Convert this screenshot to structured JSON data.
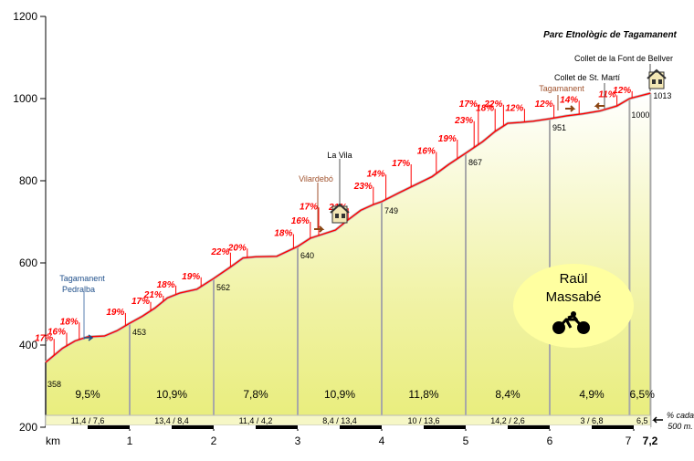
{
  "chart_data": {
    "type": "area",
    "title": "Parc Etnològic de Tagamanent",
    "xlabel": "km",
    "xlim": [
      0,
      7.2
    ],
    "ylim": [
      200,
      1200
    ],
    "y_ticks": [
      200,
      400,
      600,
      800,
      1000,
      1200
    ],
    "x_ticks": [
      1,
      2,
      3,
      4,
      5,
      6,
      7
    ],
    "x_end_label": "7,2",
    "fill_color": "#f1f3a8",
    "line_color": "#ff0000",
    "profile": [
      [
        0,
        358
      ],
      [
        0.1,
        375
      ],
      [
        0.2,
        392
      ],
      [
        0.35,
        410
      ],
      [
        0.5,
        420
      ],
      [
        0.7,
        422
      ],
      [
        0.85,
        435
      ],
      [
        1,
        453
      ],
      [
        1.15,
        470
      ],
      [
        1.3,
        490
      ],
      [
        1.45,
        515
      ],
      [
        1.6,
        527
      ],
      [
        1.8,
        536
      ],
      [
        2,
        562
      ],
      [
        2.2,
        590
      ],
      [
        2.35,
        612
      ],
      [
        2.5,
        615
      ],
      [
        2.75,
        616
      ],
      [
        3,
        640
      ],
      [
        3.15,
        660
      ],
      [
        3.3,
        670
      ],
      [
        3.45,
        680
      ],
      [
        3.6,
        705
      ],
      [
        3.75,
        728
      ],
      [
        3.9,
        742
      ],
      [
        4,
        749
      ],
      [
        4.2,
        770
      ],
      [
        4.4,
        790
      ],
      [
        4.6,
        810
      ],
      [
        4.8,
        840
      ],
      [
        5,
        867
      ],
      [
        5.2,
        895
      ],
      [
        5.35,
        920
      ],
      [
        5.5,
        940
      ],
      [
        5.65,
        942
      ],
      [
        5.8,
        945
      ],
      [
        6,
        951
      ],
      [
        6.2,
        958
      ],
      [
        6.4,
        963
      ],
      [
        6.6,
        970
      ],
      [
        6.8,
        982
      ],
      [
        6.95,
        1000
      ],
      [
        7.2,
        1013
      ]
    ],
    "point_altitudes": [
      {
        "km": 0,
        "alt": "358"
      },
      {
        "km": 1,
        "alt": "453"
      },
      {
        "km": 2,
        "alt": "562"
      },
      {
        "km": 3,
        "alt": "640"
      },
      {
        "km": 4,
        "alt": "749"
      },
      {
        "km": 5,
        "alt": "867"
      },
      {
        "km": 6,
        "alt": "951"
      },
      {
        "km": 6.95,
        "alt": "1000"
      },
      {
        "km": 7.2,
        "alt": "1013"
      }
    ],
    "gradients": [
      {
        "km": 0.1,
        "top": 415,
        "text": "17%"
      },
      {
        "km": 0.25,
        "top": 430,
        "text": "16%"
      },
      {
        "km": 0.4,
        "top": 455,
        "text": "18%"
      },
      {
        "km": 0.95,
        "top": 478,
        "text": "19%"
      },
      {
        "km": 1.25,
        "top": 505,
        "text": "17%"
      },
      {
        "km": 1.4,
        "top": 520,
        "text": "21%"
      },
      {
        "km": 1.55,
        "top": 545,
        "text": "18%"
      },
      {
        "km": 1.85,
        "top": 565,
        "text": "19%"
      },
      {
        "km": 2.2,
        "top": 625,
        "text": "22%"
      },
      {
        "km": 2.4,
        "top": 635,
        "text": "20%"
      },
      {
        "km": 2.95,
        "top": 670,
        "text": "18%"
      },
      {
        "km": 3.15,
        "top": 700,
        "text": "16%"
      },
      {
        "km": 3.25,
        "top": 735,
        "text": "17%"
      },
      {
        "km": 3.6,
        "top": 733,
        "text": "21%"
      },
      {
        "km": 3.9,
        "top": 785,
        "text": "23%"
      },
      {
        "km": 4.05,
        "top": 815,
        "text": "14%"
      },
      {
        "km": 4.35,
        "top": 840,
        "text": "17%"
      },
      {
        "km": 4.65,
        "top": 870,
        "text": "16%"
      },
      {
        "km": 4.9,
        "top": 900,
        "text": "19%"
      },
      {
        "km": 5.1,
        "top": 945,
        "text": "23%"
      },
      {
        "km": 5.15,
        "top": 985,
        "text": "17%"
      },
      {
        "km": 5.35,
        "top": 975,
        "text": "18%"
      },
      {
        "km": 5.45,
        "top": 985,
        "text": "22%"
      },
      {
        "km": 5.7,
        "top": 975,
        "text": "12%"
      },
      {
        "km": 6.05,
        "top": 985,
        "text": "12%"
      },
      {
        "km": 6.35,
        "top": 995,
        "text": "14%"
      },
      {
        "km": 6.8,
        "top": 1008,
        "text": "11%"
      },
      {
        "km": 6.98,
        "top": 1018,
        "text": "12%"
      }
    ],
    "segments": [
      {
        "km": 0.5,
        "gradient": "9,5%",
        "band": "11,4   /   7,6"
      },
      {
        "km": 1.5,
        "gradient": "10,9%",
        "band": "13,4   /   8,4"
      },
      {
        "km": 2.5,
        "gradient": "7,8%",
        "band": "11,4   /   4,2"
      },
      {
        "km": 3.5,
        "gradient": "10,9%",
        "band": "8,4   /   13,4"
      },
      {
        "km": 4.5,
        "gradient": "11,8%",
        "band": "10   /   13,6"
      },
      {
        "km": 5.5,
        "gradient": "8,4%",
        "band": "14,2   /   2,6"
      },
      {
        "km": 6.5,
        "gradient": "4,9%",
        "band": "3   /   6,8"
      },
      {
        "km": 7.1,
        "gradient": "6,5%",
        "band": "6,5"
      }
    ],
    "band_note": [
      "% cada",
      "500 m."
    ],
    "places": [
      {
        "id": "tagamanent-pedralba",
        "lines": [
          "Tagamanent",
          "Pedralba"
        ],
        "color": "blue"
      },
      {
        "id": "vilardebo",
        "lines": [
          "Vilardebó"
        ],
        "color": "brown"
      },
      {
        "id": "la-vila",
        "lines": [
          "La Vila"
        ],
        "color": "black"
      },
      {
        "id": "tagamanent",
        "lines": [
          "Tagamanent"
        ],
        "color": "brown"
      },
      {
        "id": "collet-st-marti",
        "lines": [
          "Collet de St. Martí"
        ],
        "color": "black"
      },
      {
        "id": "collet-font-bellver",
        "lines": [
          "Collet de la Font de Bellver"
        ],
        "color": "black"
      }
    ],
    "author": [
      "Raül",
      "Massabé"
    ],
    "grid": false
  }
}
